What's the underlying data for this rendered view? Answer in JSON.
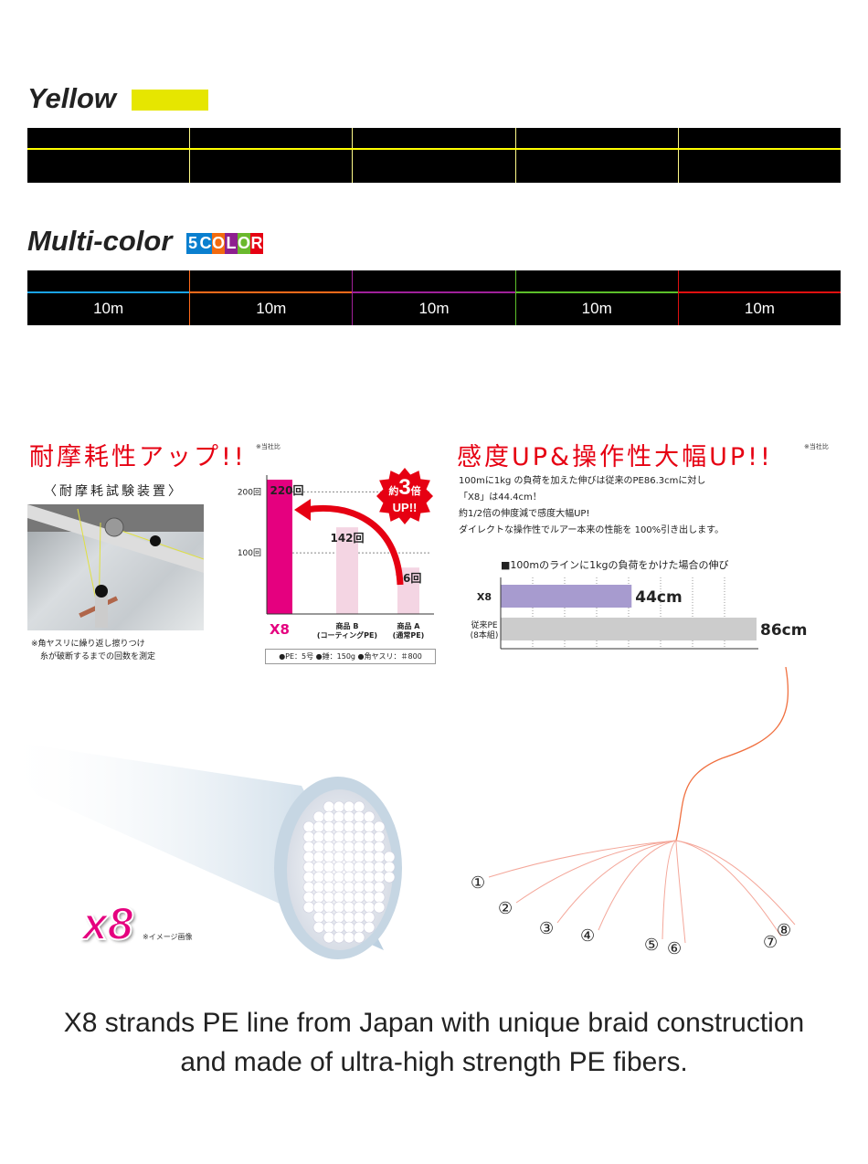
{
  "yellow": {
    "title": "Yellow",
    "swatch_color": "#e6e600",
    "line_color": "#ffff00"
  },
  "multicolor": {
    "title": "Multi-color",
    "badge": [
      "5",
      "C",
      "O",
      "L",
      "O",
      "R"
    ],
    "badge_colors": [
      "#0a7fcf",
      "#f26a0f",
      "#8e1f8f",
      "#6ab82d",
      "#e60012"
    ],
    "segments": [
      {
        "label": "10m",
        "color": "#1aa3e8"
      },
      {
        "label": "10m",
        "color": "#ff6a1a"
      },
      {
        "label": "10m",
        "color": "#a0209a"
      },
      {
        "label": "10m",
        "color": "#5cc02a"
      },
      {
        "label": "10m",
        "color": "#e01010"
      }
    ]
  },
  "abrasion": {
    "title": "耐摩耗性アップ!!",
    "note": "※当社比",
    "device_label": "〈耐摩耗試験装置〉",
    "footnote": [
      "※角ヤスリに繰り返し擦りつけ",
      "糸が破断するまでの回数を測定"
    ],
    "burst": {
      "line1": "約",
      "big": "3",
      "line1b": "倍",
      "line2": "UP!!"
    },
    "conditions": "●PE：5号 ●錘：150g ●角ヤスリ：＃800"
  },
  "chart_data": [
    {
      "type": "bar",
      "categories": [
        "X8",
        "商品 B\n(コーティングPE)",
        "商品 A\n(通常PE)"
      ],
      "category_lines": [
        [
          "X8"
        ],
        [
          "商品 B",
          "(コーティングPE)"
        ],
        [
          "商品 A",
          "(通常PE)"
        ]
      ],
      "values": [
        220,
        142,
        76
      ],
      "value_labels": [
        "220回",
        "142回",
        "76回"
      ],
      "yticks": [
        "100回",
        "200回"
      ],
      "ytick_values": [
        100,
        200
      ],
      "ylim": [
        0,
        300
      ],
      "colors": [
        "#e5007f",
        "#f4d5e3",
        "#f4d5e3"
      ]
    },
    {
      "type": "bar",
      "orientation": "horizontal",
      "title": "■100mのラインに1kgの負荷をかけた場合の伸び",
      "categories": [
        "X8",
        "従来PE\n(8本組)"
      ],
      "category_lines": [
        [
          "X8"
        ],
        [
          "従来PE",
          "(8本組)"
        ]
      ],
      "values": [
        44,
        86
      ],
      "value_labels": [
        "44cm",
        "86cm"
      ],
      "xlim": [
        0,
        86
      ],
      "colors": [
        "#a79bcf",
        "#cccccc"
      ]
    }
  ],
  "sensitivity": {
    "title": "感度UP&操作性大幅UP!!",
    "note": "※当社比",
    "text": [
      "100mに1kg の負荷を加えた伸びは従来のPE86.3cmに対し",
      "「X8」は44.4cm！",
      "約1/2倍の伸度減で感度大幅UP!",
      "ダイレクトな操作性でルアー本来の性能を 100%引き出します。"
    ]
  },
  "fiber": {
    "logo": "x8",
    "note": "※イメージ画像"
  },
  "strands": {
    "numbers": [
      "①",
      "②",
      "③",
      "④",
      "⑤",
      "⑥",
      "⑦",
      "⑧"
    ]
  },
  "caption": [
    "X8 strands PE line from Japan with unique braid construction",
    "and made of ultra-high strength PE fibers."
  ]
}
